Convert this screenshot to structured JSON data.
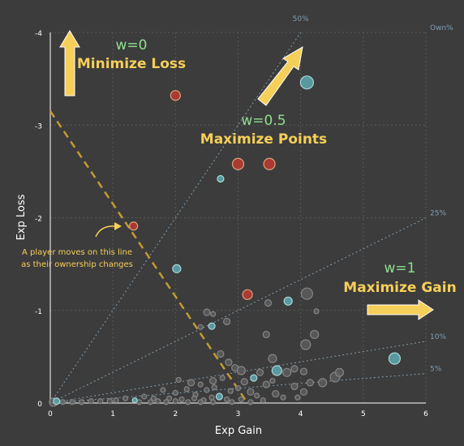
{
  "chart_data": {
    "type": "scatter",
    "xlabel": "Exp Gain",
    "ylabel": "Exp Loss",
    "xlim": [
      0,
      6
    ],
    "ylim": [
      0,
      -4
    ],
    "y_inverted": true,
    "x_ticks": [
      "0",
      "1",
      "2",
      "3",
      "4",
      "5",
      "6"
    ],
    "y_ticks": [
      "0",
      "-1",
      "-2",
      "-3",
      "-4"
    ],
    "grid": true,
    "ownership_header": "Own%",
    "ownership_lines": [
      {
        "label": "50%",
        "slope": -1.0
      },
      {
        "label": "25%",
        "slope": -0.333
      },
      {
        "label": "10%",
        "slope": -0.111
      },
      {
        "label": "5%",
        "slope": -0.053
      }
    ],
    "ownership_move_line": {
      "from": [
        0,
        -3.15
      ],
      "to": [
        3.15,
        0
      ]
    },
    "annotations": [
      {
        "weight": "w=0",
        "objective": "Minimize Loss"
      },
      {
        "weight": "w=0.5",
        "objective": "Maximize Points"
      },
      {
        "weight": "w=1",
        "objective": "Maximize Gain"
      },
      {
        "note_lines": [
          "A player moves on this line",
          "as their ownership changes"
        ]
      }
    ],
    "colors": {
      "red_point": "#b03a32",
      "teal_point": "#5a9ea4",
      "gray_point": "#5e5e5e",
      "arrow": "#f6cf58",
      "dashed_line": "#c39a32",
      "ownership_line": "#7f9eb3",
      "weight_text": "#8fdf8f"
    },
    "series": [
      {
        "color": "red",
        "points": [
          {
            "x": 2.0,
            "y": -3.32,
            "size": 6
          },
          {
            "x": 3.0,
            "y": -2.58,
            "size": 7
          },
          {
            "x": 3.5,
            "y": -2.58,
            "size": 7
          },
          {
            "x": 1.33,
            "y": -1.91,
            "size": 5
          },
          {
            "x": 3.15,
            "y": -1.17,
            "size": 6
          }
        ]
      },
      {
        "color": "teal",
        "points": [
          {
            "x": 4.1,
            "y": -3.46,
            "size": 8
          },
          {
            "x": 2.72,
            "y": -2.42,
            "size": 4
          },
          {
            "x": 2.02,
            "y": -1.45,
            "size": 5
          },
          {
            "x": 3.8,
            "y": -1.1,
            "size": 5
          },
          {
            "x": 2.58,
            "y": -0.83,
            "size": 4
          },
          {
            "x": 3.62,
            "y": -0.35,
            "size": 6
          },
          {
            "x": 5.5,
            "y": -0.48,
            "size": 7
          },
          {
            "x": 3.25,
            "y": -0.27,
            "size": 4
          },
          {
            "x": 2.7,
            "y": -0.07,
            "size": 4
          },
          {
            "x": 0.1,
            "y": -0.02,
            "size": 4
          },
          {
            "x": 1.35,
            "y": -0.03,
            "size": 3
          }
        ]
      },
      {
        "color": "gray",
        "points": [
          {
            "x": 4.1,
            "y": -1.18,
            "size": 7
          },
          {
            "x": 3.48,
            "y": -1.08,
            "size": 4
          },
          {
            "x": 4.25,
            "y": -0.99,
            "size": 3
          },
          {
            "x": 2.5,
            "y": -0.98,
            "size": 4
          },
          {
            "x": 2.6,
            "y": -0.96,
            "size": 3
          },
          {
            "x": 2.82,
            "y": -0.88,
            "size": 4
          },
          {
            "x": 2.4,
            "y": -0.82,
            "size": 3
          },
          {
            "x": 3.45,
            "y": -0.74,
            "size": 4
          },
          {
            "x": 4.22,
            "y": -0.74,
            "size": 5
          },
          {
            "x": 4.08,
            "y": -0.63,
            "size": 6
          },
          {
            "x": 2.72,
            "y": -0.53,
            "size": 4
          },
          {
            "x": 3.55,
            "y": -0.48,
            "size": 5
          },
          {
            "x": 2.85,
            "y": -0.44,
            "size": 4
          },
          {
            "x": 2.95,
            "y": -0.38,
            "size": 4
          },
          {
            "x": 3.05,
            "y": -0.35,
            "size": 5
          },
          {
            "x": 3.35,
            "y": -0.33,
            "size": 4
          },
          {
            "x": 3.78,
            "y": -0.33,
            "size": 5
          },
          {
            "x": 3.9,
            "y": -0.37,
            "size": 4
          },
          {
            "x": 4.05,
            "y": -0.34,
            "size": 4
          },
          {
            "x": 4.55,
            "y": -0.28,
            "size": 6
          },
          {
            "x": 4.62,
            "y": -0.33,
            "size": 5
          },
          {
            "x": 2.05,
            "y": -0.25,
            "size": 3
          },
          {
            "x": 2.25,
            "y": -0.22,
            "size": 4
          },
          {
            "x": 2.4,
            "y": -0.2,
            "size": 3
          },
          {
            "x": 2.6,
            "y": -0.24,
            "size": 4
          },
          {
            "x": 2.75,
            "y": -0.27,
            "size": 3
          },
          {
            "x": 3.1,
            "y": -0.23,
            "size": 4
          },
          {
            "x": 3.45,
            "y": -0.2,
            "size": 4
          },
          {
            "x": 3.55,
            "y": -0.24,
            "size": 3
          },
          {
            "x": 3.9,
            "y": -0.18,
            "size": 4
          },
          {
            "x": 4.15,
            "y": -0.22,
            "size": 4
          },
          {
            "x": 4.35,
            "y": -0.22,
            "size": 5
          },
          {
            "x": 4.05,
            "y": -0.12,
            "size": 4
          },
          {
            "x": 1.8,
            "y": -0.14,
            "size": 3
          },
          {
            "x": 2.0,
            "y": -0.11,
            "size": 3
          },
          {
            "x": 2.18,
            "y": -0.15,
            "size": 3
          },
          {
            "x": 2.32,
            "y": -0.09,
            "size": 3
          },
          {
            "x": 2.5,
            "y": -0.14,
            "size": 3
          },
          {
            "x": 2.62,
            "y": -0.17,
            "size": 3
          },
          {
            "x": 2.88,
            "y": -0.13,
            "size": 3
          },
          {
            "x": 3.0,
            "y": -0.16,
            "size": 3
          },
          {
            "x": 3.2,
            "y": -0.12,
            "size": 4
          },
          {
            "x": 3.3,
            "y": -0.08,
            "size": 3
          },
          {
            "x": 3.6,
            "y": -0.1,
            "size": 4
          },
          {
            "x": 3.72,
            "y": -0.06,
            "size": 3
          },
          {
            "x": 3.95,
            "y": -0.06,
            "size": 3
          },
          {
            "x": 1.5,
            "y": -0.07,
            "size": 3
          },
          {
            "x": 1.65,
            "y": -0.05,
            "size": 3
          },
          {
            "x": 1.9,
            "y": -0.05,
            "size": 3
          },
          {
            "x": 2.1,
            "y": -0.04,
            "size": 3
          },
          {
            "x": 2.3,
            "y": -0.05,
            "size": 3
          },
          {
            "x": 2.45,
            "y": -0.03,
            "size": 3
          },
          {
            "x": 2.58,
            "y": -0.06,
            "size": 3
          },
          {
            "x": 2.82,
            "y": -0.04,
            "size": 3
          },
          {
            "x": 3.05,
            "y": -0.04,
            "size": 3
          },
          {
            "x": 3.4,
            "y": -0.03,
            "size": 3
          },
          {
            "x": 1.05,
            "y": -0.03,
            "size": 3
          },
          {
            "x": 1.2,
            "y": -0.05,
            "size": 3
          },
          {
            "x": 0.95,
            "y": -0.02,
            "size": 3
          },
          {
            "x": 1.72,
            "y": -0.02,
            "size": 3
          },
          {
            "x": 0.8,
            "y": -0.02,
            "size": 3
          },
          {
            "x": 0.65,
            "y": -0.02,
            "size": 3
          },
          {
            "x": 0.5,
            "y": -0.01,
            "size": 3
          },
          {
            "x": 0.35,
            "y": -0.01,
            "size": 3
          },
          {
            "x": 0.2,
            "y": -0.01,
            "size": 3
          },
          {
            "x": 0.05,
            "y": -0.01,
            "size": 5
          },
          {
            "x": 1.42,
            "y": -0.01,
            "size": 3
          },
          {
            "x": 1.6,
            "y": -0.01,
            "size": 3
          },
          {
            "x": 1.85,
            "y": -0.01,
            "size": 3
          },
          {
            "x": 2.0,
            "y": -0.02,
            "size": 3
          },
          {
            "x": 2.2,
            "y": -0.01,
            "size": 3
          },
          {
            "x": 2.4,
            "y": -0.01,
            "size": 3
          },
          {
            "x": 2.6,
            "y": -0.01,
            "size": 3
          },
          {
            "x": 2.9,
            "y": -0.01,
            "size": 3
          },
          {
            "x": 3.2,
            "y": -0.01,
            "size": 3
          }
        ]
      }
    ]
  }
}
